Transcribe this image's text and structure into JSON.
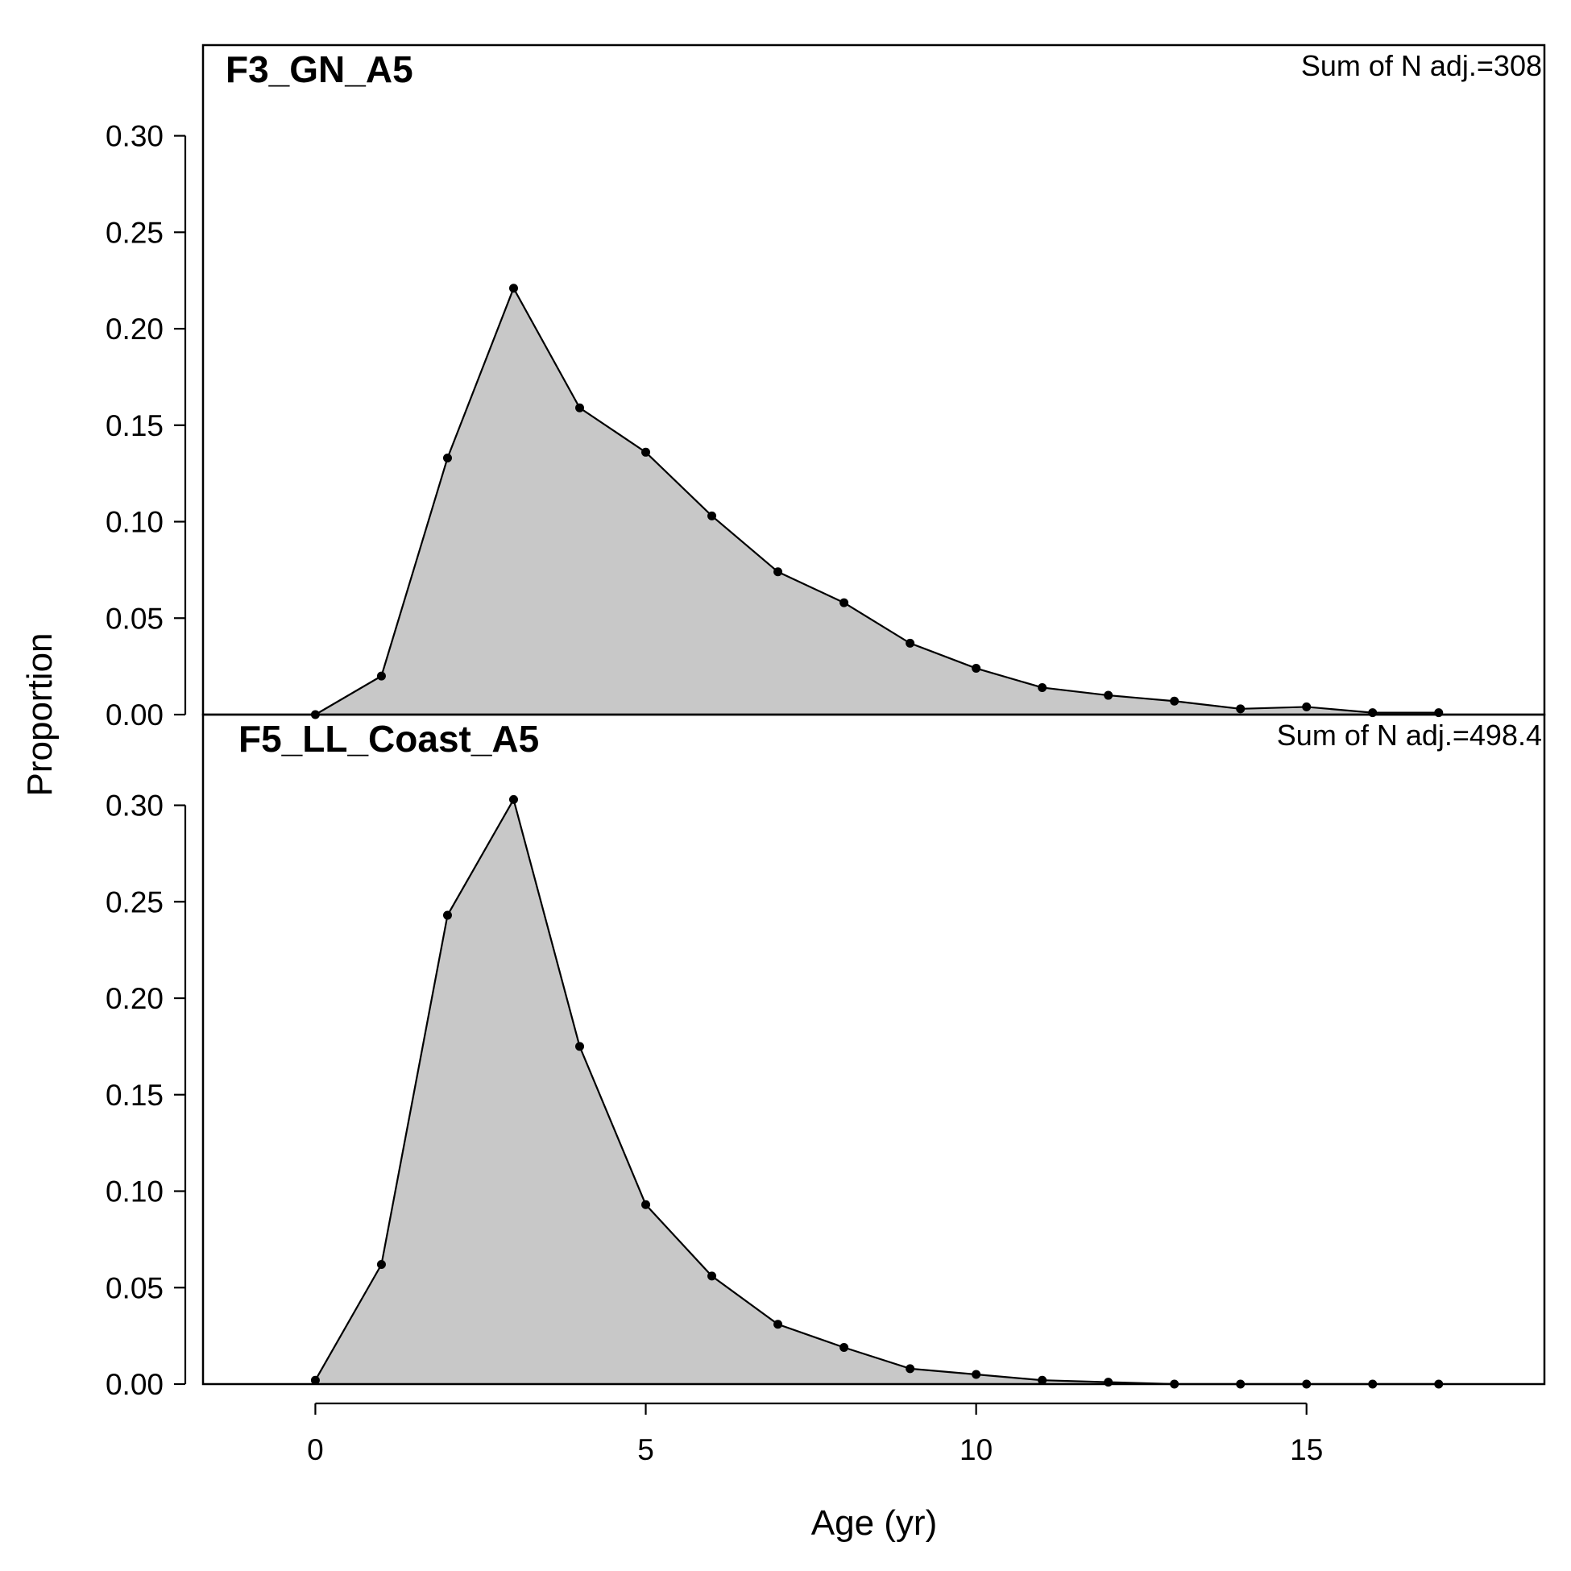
{
  "chart_data": {
    "type": "area",
    "xlabel": "Age (yr)",
    "ylabel": "Proportion",
    "xlim": [
      -1.7,
      18.6
    ],
    "x_ticks": [
      0,
      5,
      10,
      15
    ],
    "y_ticks": [
      0.0,
      0.05,
      0.1,
      0.15,
      0.2,
      0.25,
      0.3
    ],
    "y_tick_labels": [
      "0.00",
      "0.05",
      "0.10",
      "0.15",
      "0.20",
      "0.25",
      "0.30"
    ],
    "x_tick_labels": [
      "0",
      "5",
      "10",
      "15"
    ],
    "fill_color": "#c8c8c8",
    "line_color": "#000000",
    "panels": [
      {
        "title": "F3_GN_A5",
        "annotation": "Sum of N adj.=308",
        "ylim": [
          0,
          0.347
        ],
        "x": [
          0,
          1,
          2,
          3,
          4,
          5,
          6,
          7,
          8,
          9,
          10,
          11,
          12,
          13,
          14,
          15,
          16,
          17
        ],
        "y": [
          0.0,
          0.02,
          0.133,
          0.221,
          0.159,
          0.136,
          0.103,
          0.074,
          0.058,
          0.037,
          0.024,
          0.014,
          0.01,
          0.007,
          0.003,
          0.004,
          0.001,
          0.001
        ]
      },
      {
        "title": "F5_LL_Coast_A5",
        "annotation": "Sum of N adj.=498.4",
        "ylim": [
          0,
          0.347
        ],
        "x": [
          0,
          1,
          2,
          3,
          4,
          5,
          6,
          7,
          8,
          9,
          10,
          11,
          12,
          13,
          14,
          15,
          16,
          17
        ],
        "y": [
          0.002,
          0.062,
          0.243,
          0.303,
          0.175,
          0.093,
          0.056,
          0.031,
          0.019,
          0.008,
          0.005,
          0.002,
          0.001,
          0.0,
          0.0,
          0.0,
          0.0,
          0.0
        ]
      }
    ]
  }
}
